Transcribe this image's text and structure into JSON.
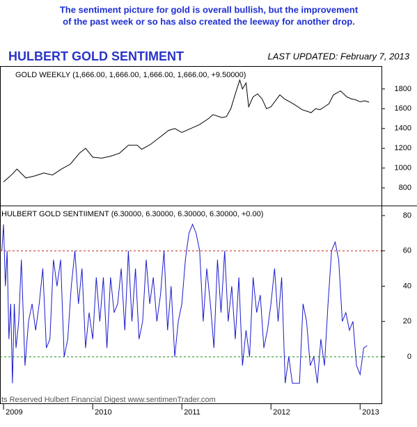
{
  "header": {
    "note": [
      "The sentiment picture for gold is overall bullish, but the improvement",
      "of the past week or so has also created the leeway for another drop."
    ],
    "title": "HULBERT GOLD SENTIMENT",
    "updated": "LAST UPDATED:  February 7, 2013"
  },
  "footer": "ts Reserved  Hulbert Financial Digest  www.sentimenTrader.com",
  "chart_data": [
    {
      "type": "line",
      "xlim": [
        2008.96,
        2013.24
      ],
      "ylim": [
        618,
        2024
      ],
      "yticks": [
        800,
        1000,
        1200,
        1400,
        1600,
        1800
      ],
      "series": [
        {
          "name": "GOLD WEEKLY (1,666.00, 1,666.00, 1,666.00, 1,666.00, +9.50000)",
          "color": "#000000",
          "x": [
            2009.0,
            2009.1,
            2009.15,
            2009.25,
            2009.35,
            2009.45,
            2009.55,
            2009.65,
            2009.75,
            2009.85,
            2009.92,
            2010.0,
            2010.1,
            2010.2,
            2010.3,
            2010.4,
            2010.5,
            2010.55,
            2010.65,
            2010.75,
            2010.85,
            2010.92,
            2011.0,
            2011.1,
            2011.2,
            2011.3,
            2011.35,
            2011.45,
            2011.5,
            2011.55,
            2011.6,
            2011.65,
            2011.68,
            2011.72,
            2011.75,
            2011.8,
            2011.85,
            2011.9,
            2011.95,
            2012.0,
            2012.1,
            2012.15,
            2012.25,
            2012.35,
            2012.45,
            2012.5,
            2012.55,
            2012.6,
            2012.65,
            2012.7,
            2012.78,
            2012.85,
            2012.9,
            2012.95,
            2013.0,
            2013.05,
            2013.1
          ],
          "values": [
            860,
            940,
            990,
            900,
            920,
            950,
            930,
            990,
            1040,
            1150,
            1200,
            1110,
            1100,
            1120,
            1150,
            1230,
            1230,
            1190,
            1240,
            1310,
            1380,
            1400,
            1360,
            1400,
            1440,
            1500,
            1540,
            1510,
            1520,
            1600,
            1750,
            1890,
            1800,
            1860,
            1620,
            1720,
            1750,
            1700,
            1600,
            1620,
            1740,
            1700,
            1650,
            1590,
            1560,
            1600,
            1590,
            1620,
            1650,
            1740,
            1780,
            1720,
            1700,
            1690,
            1670,
            1680,
            1666
          ]
        }
      ]
    },
    {
      "type": "line",
      "xlim": [
        2008.96,
        2013.24
      ],
      "ylim": [
        -26.4,
        85.5
      ],
      "yticks": [
        0,
        20,
        40,
        60,
        80
      ],
      "xticks": [
        2009,
        2010,
        2011,
        2012,
        2013
      ],
      "hlines": [
        {
          "value": 60,
          "color": "#cc2222"
        },
        {
          "value": 0,
          "color": "#118811"
        }
      ],
      "series": [
        {
          "name": "HULBERT GOLD SENTIIMENT (6.30000, 6.30000, 6.30000, 6.30000, +0.00)",
          "color": "#1a1acc",
          "x": [
            2008.98,
            2009.0,
            2009.02,
            2009.04,
            2009.06,
            2009.08,
            2009.1,
            2009.12,
            2009.14,
            2009.17,
            2009.2,
            2009.24,
            2009.28,
            2009.32,
            2009.36,
            2009.4,
            2009.44,
            2009.48,
            2009.52,
            2009.56,
            2009.6,
            2009.64,
            2009.68,
            2009.72,
            2009.76,
            2009.8,
            2009.84,
            2009.88,
            2009.92,
            2009.96,
            2010.0,
            2010.04,
            2010.08,
            2010.12,
            2010.16,
            2010.2,
            2010.24,
            2010.28,
            2010.32,
            2010.36,
            2010.4,
            2010.44,
            2010.48,
            2010.52,
            2010.56,
            2010.6,
            2010.64,
            2010.68,
            2010.72,
            2010.76,
            2010.8,
            2010.84,
            2010.88,
            2010.92,
            2010.96,
            2011.0,
            2011.04,
            2011.08,
            2011.12,
            2011.16,
            2011.2,
            2011.24,
            2011.28,
            2011.32,
            2011.36,
            2011.4,
            2011.44,
            2011.48,
            2011.52,
            2011.56,
            2011.6,
            2011.64,
            2011.68,
            2011.72,
            2011.76,
            2011.8,
            2011.84,
            2011.88,
            2011.92,
            2011.96,
            2012.0,
            2012.04,
            2012.08,
            2012.12,
            2012.16,
            2012.2,
            2012.24,
            2012.28,
            2012.32,
            2012.36,
            2012.4,
            2012.44,
            2012.48,
            2012.52,
            2012.56,
            2012.6,
            2012.64,
            2012.68,
            2012.72,
            2012.76,
            2012.8,
            2012.84,
            2012.88,
            2012.92,
            2012.96,
            2013.0,
            2013.04,
            2013.08
          ],
          "values": [
            60,
            75,
            40,
            60,
            10,
            30,
            -15,
            30,
            5,
            20,
            55,
            -5,
            20,
            30,
            15,
            30,
            50,
            5,
            10,
            55,
            40,
            55,
            0,
            10,
            40,
            60,
            30,
            50,
            5,
            25,
            10,
            45,
            20,
            45,
            5,
            45,
            25,
            30,
            50,
            15,
            60,
            20,
            50,
            10,
            20,
            55,
            30,
            45,
            20,
            35,
            60,
            15,
            40,
            0,
            20,
            30,
            55,
            70,
            75,
            70,
            60,
            20,
            50,
            30,
            5,
            55,
            25,
            60,
            20,
            40,
            10,
            45,
            -5,
            15,
            0,
            45,
            25,
            35,
            5,
            15,
            30,
            50,
            20,
            45,
            -15,
            0,
            -15,
            -15,
            -15,
            30,
            20,
            -5,
            0,
            -15,
            10,
            -5,
            30,
            60,
            65,
            55,
            20,
            25,
            15,
            20,
            -5,
            -10,
            5,
            6.3
          ]
        }
      ]
    }
  ]
}
